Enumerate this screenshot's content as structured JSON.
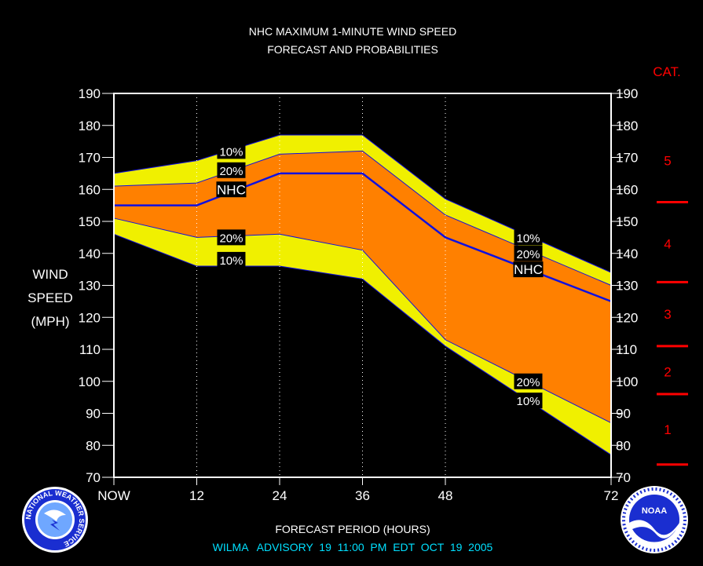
{
  "chart_data": {
    "type": "area",
    "title": "NHC MAXIMUM 1-MINUTE WIND SPEED",
    "subtitle": "FORECAST AND PROBABILITIES",
    "ylabel": [
      "WIND",
      "SPEED",
      "(MPH)"
    ],
    "xlabel": "FORECAST PERIOD (HOURS)",
    "footer": "WILMA   ADVISORY  19  11:00  PM  EDT  OCT  19  2005",
    "xlim": [
      0,
      72
    ],
    "ylim": [
      70,
      190
    ],
    "yticks": [
      70,
      80,
      90,
      100,
      110,
      120,
      130,
      140,
      150,
      160,
      170,
      180,
      190
    ],
    "xticks": [
      {
        "x": 0,
        "label": "NOW"
      },
      {
        "x": 12,
        "label": "12"
      },
      {
        "x": 24,
        "label": "24"
      },
      {
        "x": 36,
        "label": "36"
      },
      {
        "x": 48,
        "label": "48"
      },
      {
        "x": 72,
        "label": "72"
      }
    ],
    "x": [
      0,
      12,
      24,
      36,
      48,
      72
    ],
    "series": [
      {
        "name": "10%",
        "role": "upper-10",
        "values": [
          165,
          169,
          177,
          177,
          157,
          134
        ]
      },
      {
        "name": "20%",
        "role": "upper-20",
        "values": [
          161,
          162,
          171,
          172,
          152,
          130
        ]
      },
      {
        "name": "NHC",
        "role": "forecast",
        "values": [
          155,
          155,
          165,
          165,
          145,
          125
        ]
      },
      {
        "name": "20%",
        "role": "lower-20",
        "values": [
          151,
          145,
          146,
          141,
          113,
          87
        ]
      },
      {
        "name": "10%",
        "role": "lower-10",
        "values": [
          146,
          136,
          136,
          132,
          111,
          77
        ]
      }
    ],
    "labels": [
      {
        "text": "10%",
        "x": 17,
        "y": 172
      },
      {
        "text": "20%",
        "x": 17,
        "y": 166
      },
      {
        "text": "NHC",
        "x": 17,
        "y": 160
      },
      {
        "text": "20%",
        "x": 17,
        "y": 145
      },
      {
        "text": "10%",
        "x": 17,
        "y": 138
      },
      {
        "text": "10%",
        "x": 60,
        "y": 145
      },
      {
        "text": "20%",
        "x": 60,
        "y": 140
      },
      {
        "text": "NHC",
        "x": 60,
        "y": 135
      },
      {
        "text": "20%",
        "x": 60,
        "y": 100
      },
      {
        "text": "10%",
        "x": 60,
        "y": 94
      }
    ],
    "categories": {
      "title": "CAT.",
      "boundaries": [
        74,
        96,
        111,
        131,
        156
      ],
      "items": [
        {
          "label": "1",
          "y": 85
        },
        {
          "label": "2",
          "y": 103
        },
        {
          "label": "3",
          "y": 121
        },
        {
          "label": "4",
          "y": 143
        },
        {
          "label": "5",
          "y": 169
        }
      ]
    },
    "colors": {
      "band_10": "#f0f000",
      "band_20": "#ff8000",
      "forecast_line": "#1010e0",
      "category": "#ff0000",
      "footer": "#00e0ff",
      "plot_background": "#000000"
    },
    "grid": "dotted vertical at x ticks",
    "legend": "inline labels"
  },
  "logos": {
    "left": "NATIONAL WEATHER SERVICE",
    "right_center": "NOAA"
  }
}
